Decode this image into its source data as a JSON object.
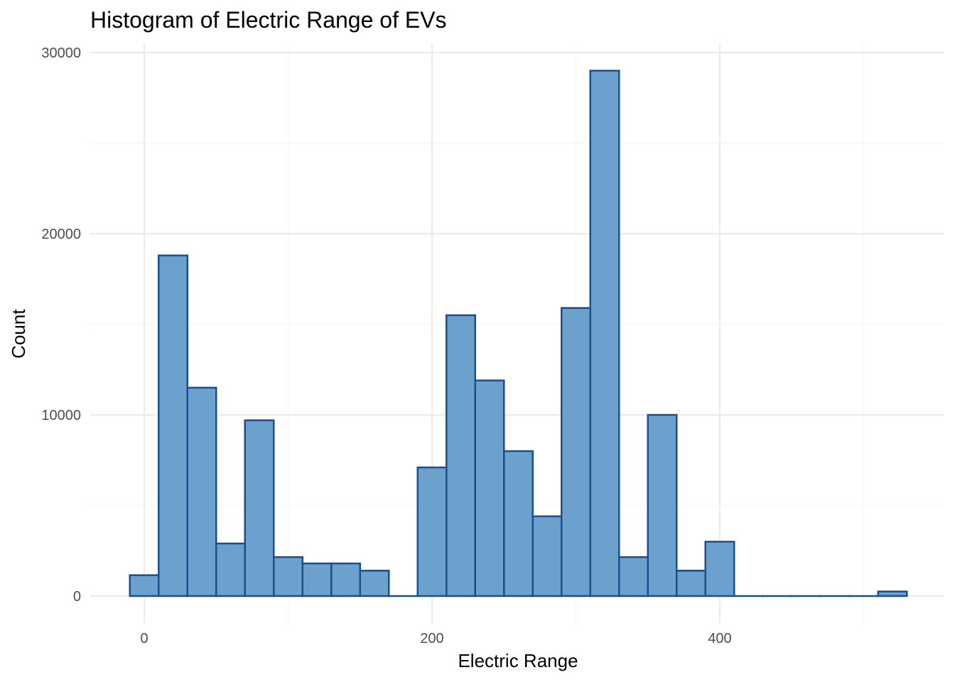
{
  "chart_data": {
    "type": "bar",
    "title": "Histogram of Electric Range of EVs",
    "xlabel": "Electric Range",
    "ylabel": "Count",
    "xlim": [
      -20,
      540
    ],
    "ylim": [
      0,
      30000
    ],
    "x_ticks": [
      0,
      200,
      400
    ],
    "x_tick_labels": [
      "0",
      "200",
      "400"
    ],
    "y_ticks": [
      0,
      10000,
      20000,
      30000
    ],
    "y_tick_labels": [
      "0",
      "10000",
      "20000",
      "30000"
    ],
    "bin_width": 20,
    "bin_centers": [
      0,
      20,
      40,
      60,
      80,
      100,
      120,
      140,
      160,
      180,
      200,
      220,
      240,
      260,
      280,
      300,
      320,
      340,
      360,
      380,
      400,
      420,
      440,
      460,
      480,
      500,
      520
    ],
    "values": [
      1150,
      18800,
      11500,
      2900,
      9700,
      2150,
      1800,
      1800,
      1400,
      0,
      7100,
      15500,
      11900,
      8000,
      4400,
      15900,
      29000,
      2150,
      10000,
      1400,
      3000,
      0,
      0,
      0,
      0,
      0,
      250
    ],
    "fill_color": "#6BA1CC",
    "stroke_color": "#1A4F8C",
    "grid": true,
    "major_grid_color": "#EBEBEB",
    "minor_grid_color": "#F5F5F5"
  }
}
